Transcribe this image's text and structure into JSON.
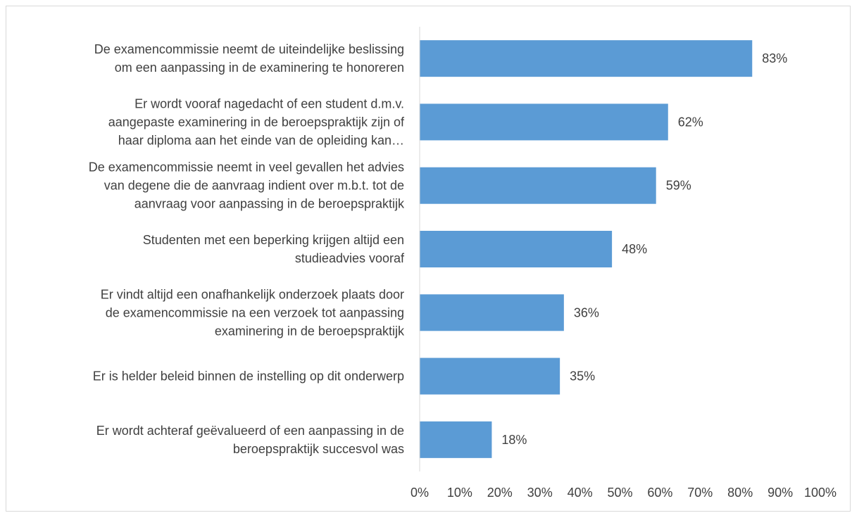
{
  "chart_data": {
    "type": "bar",
    "orientation": "horizontal",
    "title": "",
    "xlabel": "",
    "ylabel": "",
    "xlim": [
      0,
      100
    ],
    "x_ticks": [
      "0%",
      "10%",
      "20%",
      "30%",
      "40%",
      "50%",
      "60%",
      "70%",
      "80%",
      "90%",
      "100%"
    ],
    "grid": false,
    "legend": "none",
    "bar_color": "#5b9bd5",
    "categories": [
      [
        "De examencommissie neemt de uiteindelijke beslissing",
        "om een aanpassing in de examinering te honoreren"
      ],
      [
        "Er wordt vooraf nagedacht of een student d.m.v.",
        "aangepaste examinering in de beroepspraktijk zijn of",
        "haar diploma aan het einde van de opleiding kan…"
      ],
      [
        "De examencommissie neemt in veel gevallen het advies",
        "van degene die de aanvraag indient over m.b.t. tot de",
        "aanvraag voor aanpassing in de beroepspraktijk"
      ],
      [
        "Studenten met een beperking krijgen altijd een",
        "studieadvies vooraf"
      ],
      [
        "Er vindt altijd een onafhankelijk onderzoek plaats door",
        "de examencommissie na een verzoek tot aanpassing",
        "examinering in de beroepspraktijk"
      ],
      [
        "Er is helder beleid binnen de instelling op dit onderwerp"
      ],
      [
        "Er wordt achteraf geëvalueerd of een aanpassing in de",
        "beroepspraktijk succesvol was"
      ]
    ],
    "values": [
      83,
      62,
      59,
      48,
      36,
      35,
      18
    ],
    "data_labels": [
      "83%",
      "62%",
      "59%",
      "48%",
      "36%",
      "35%",
      "18%"
    ]
  }
}
